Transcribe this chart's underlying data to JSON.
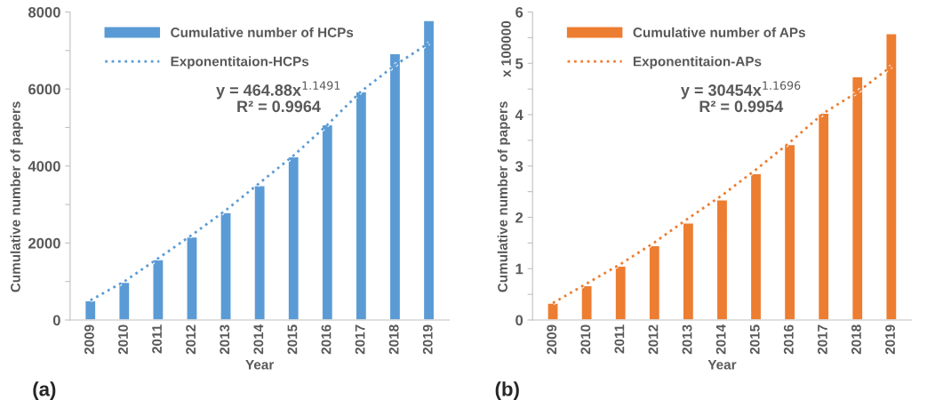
{
  "chart_data": [
    {
      "type": "bar",
      "xlabel": "Year",
      "ylabel": "Cumulative number of papers",
      "categories": [
        "2009",
        "2010",
        "2011",
        "2012",
        "2013",
        "2014",
        "2015",
        "2016",
        "2017",
        "2018",
        "2019"
      ],
      "series": [
        {
          "name": "Cumulative number of HCPs",
          "color": "#5b9bd5",
          "values": [
            500,
            980,
            1570,
            2160,
            2790,
            3490,
            4240,
            5070,
            5930,
            6920,
            7780
          ]
        },
        {
          "name": "Exponentitaion-HCPs",
          "type": "line",
          "line_style": "dotted",
          "color": "#5b9bd5",
          "values": [
            510,
            1000,
            1600,
            2210,
            2850,
            3560,
            4270,
            5070,
            5940,
            6620,
            7190
          ]
        }
      ],
      "ylim": [
        0,
        8000
      ],
      "yticks": [
        0,
        {
          "value": 1000,
          "label": null
        },
        2000,
        {
          "value": 3000,
          "label": null
        },
        4000,
        {
          "value": 5000,
          "label": null
        },
        6000,
        {
          "value": 7000,
          "label": null
        },
        8000
      ],
      "legend": "top left",
      "grid": false,
      "annotations": [
        "y = 464.88x$^{1.1491}$\nR² = 0.9964",
        "(a)"
      ]
    },
    {
      "type": "bar",
      "xlabel": "Year",
      "ylabel": "Cumulative number of papers",
      "categories": [
        "2009",
        "2010",
        "2011",
        "2012",
        "2013",
        "2014",
        "2015",
        "2016",
        "2017",
        "2018",
        "2019"
      ],
      "series": [
        {
          "name": "Cumulative number of APs",
          "color": "#ed7d31",
          "values": [
            0.33,
            0.67,
            1.05,
            1.45,
            1.89,
            2.34,
            2.85,
            3.42,
            4.03,
            4.74,
            5.58
          ]
        },
        {
          "name": "Exponentitaion-APs",
          "type": "line",
          "line_style": "dotted",
          "color": "#ed7d31",
          "values": [
            0.33,
            0.71,
            1.09,
            1.51,
            1.98,
            2.43,
            2.93,
            3.46,
            4.03,
            4.44,
            4.94
          ]
        }
      ],
      "ylim": [
        0,
        6
      ],
      "yticks": [
        0,
        {
          "value": 0.5,
          "label": null
        },
        1,
        {
          "value": 1.5,
          "label": null
        },
        2,
        {
          "value": 2.5,
          "label": null
        },
        3,
        {
          "value": 3.5,
          "label": null
        },
        4,
        {
          "value": 4.5,
          "label": null
        },
        5,
        {
          "value": 5.5,
          "label": null
        },
        6
      ],
      "legend": "top left",
      "grid": false,
      "annotations": [
        "x 100000",
        "y = 30454x$^{1.1696}$\nR² = 0.9954",
        "(b)"
      ]
    }
  ]
}
